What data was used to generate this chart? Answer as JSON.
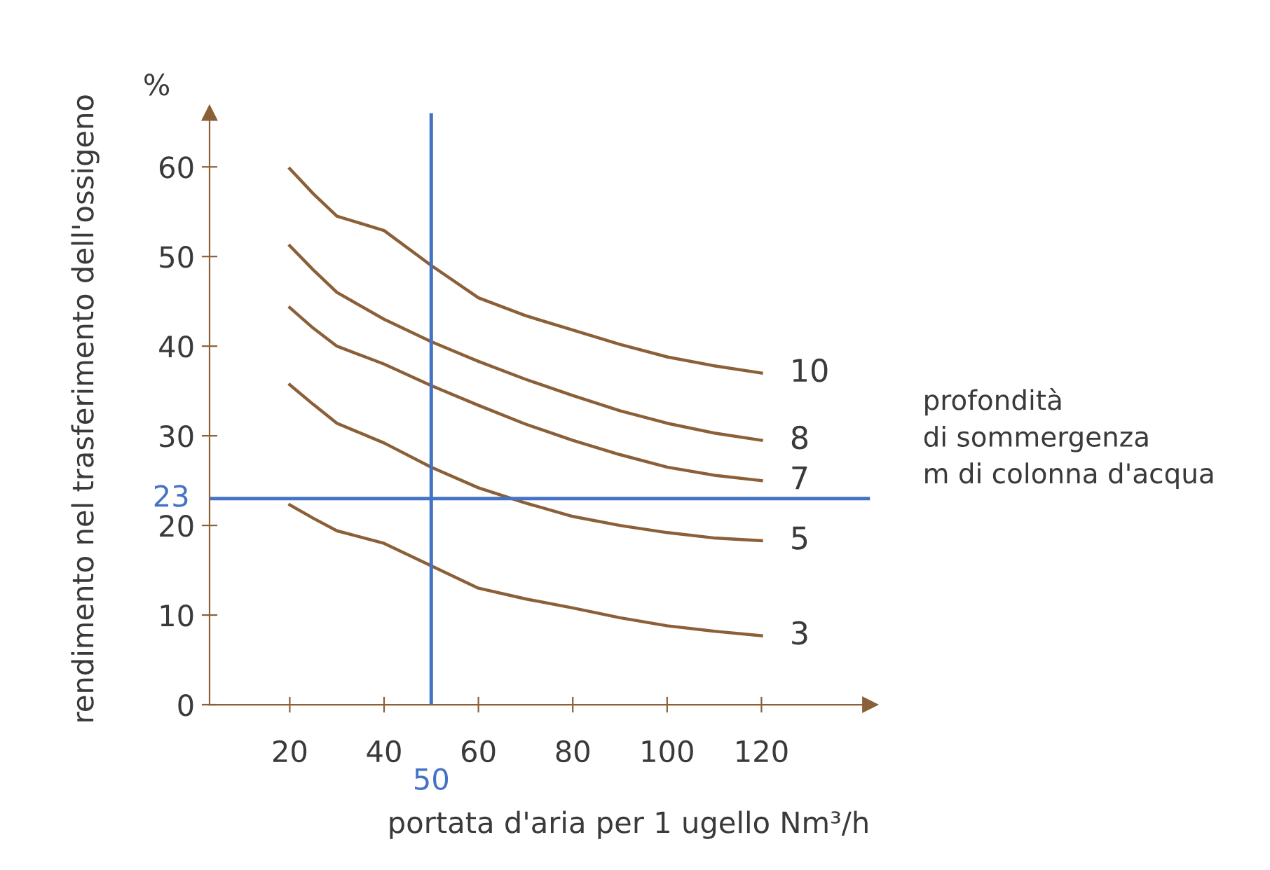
{
  "chart_data": {
    "type": "line",
    "xlabel": "portata d'aria per 1 ugello Nm³/h",
    "ylabel": "rendimento nel trasferimento dell'ossigeno",
    "x": [
      20,
      25,
      30,
      40,
      50,
      60,
      70,
      80,
      90,
      100,
      110,
      120
    ],
    "xlim": [
      3,
      143
    ],
    "xticks": [
      20,
      40,
      60,
      80,
      100,
      120
    ],
    "ylim": [
      0,
      66
    ],
    "yticks": [
      0,
      10,
      20,
      30,
      40,
      50,
      60
    ],
    "grid": false,
    "marker": "none",
    "line_style": "solid",
    "series": [
      {
        "name": "10",
        "color": "#8b6038",
        "values": [
          59.8,
          57,
          54.5,
          52.9,
          49,
          45.4,
          43.4,
          41.8,
          40.2,
          38.8,
          37.8,
          37
        ]
      },
      {
        "name": "8",
        "color": "#8b6038",
        "values": [
          51.2,
          48.5,
          46,
          43,
          40.5,
          38.3,
          36.3,
          34.5,
          32.8,
          31.4,
          30.3,
          29.5
        ]
      },
      {
        "name": "7",
        "color": "#8b6038",
        "values": [
          44.3,
          42,
          40,
          38,
          35.6,
          33.4,
          31.3,
          29.5,
          27.9,
          26.5,
          25.6,
          25
        ]
      },
      {
        "name": "5",
        "color": "#8b6038",
        "values": [
          35.7,
          33.5,
          31.4,
          29.2,
          26.5,
          24.2,
          22.5,
          21,
          20,
          19.2,
          18.6,
          18.3
        ]
      },
      {
        "name": "3",
        "color": "#8b6038",
        "values": [
          22.3,
          20.8,
          19.4,
          18,
          15.5,
          13,
          11.8,
          10.8,
          9.7,
          8.8,
          8.2,
          7.7
        ]
      }
    ],
    "ref_lines": [
      {
        "axis": "y",
        "value": 23,
        "label": "23",
        "color": "#4472c4"
      },
      {
        "axis": "x",
        "value": 50,
        "label": "50",
        "color": "#4472c4"
      }
    ],
    "annotations": [
      "%",
      "profondità\ndi sommergenza\nm di colonna d'acqua"
    ]
  }
}
